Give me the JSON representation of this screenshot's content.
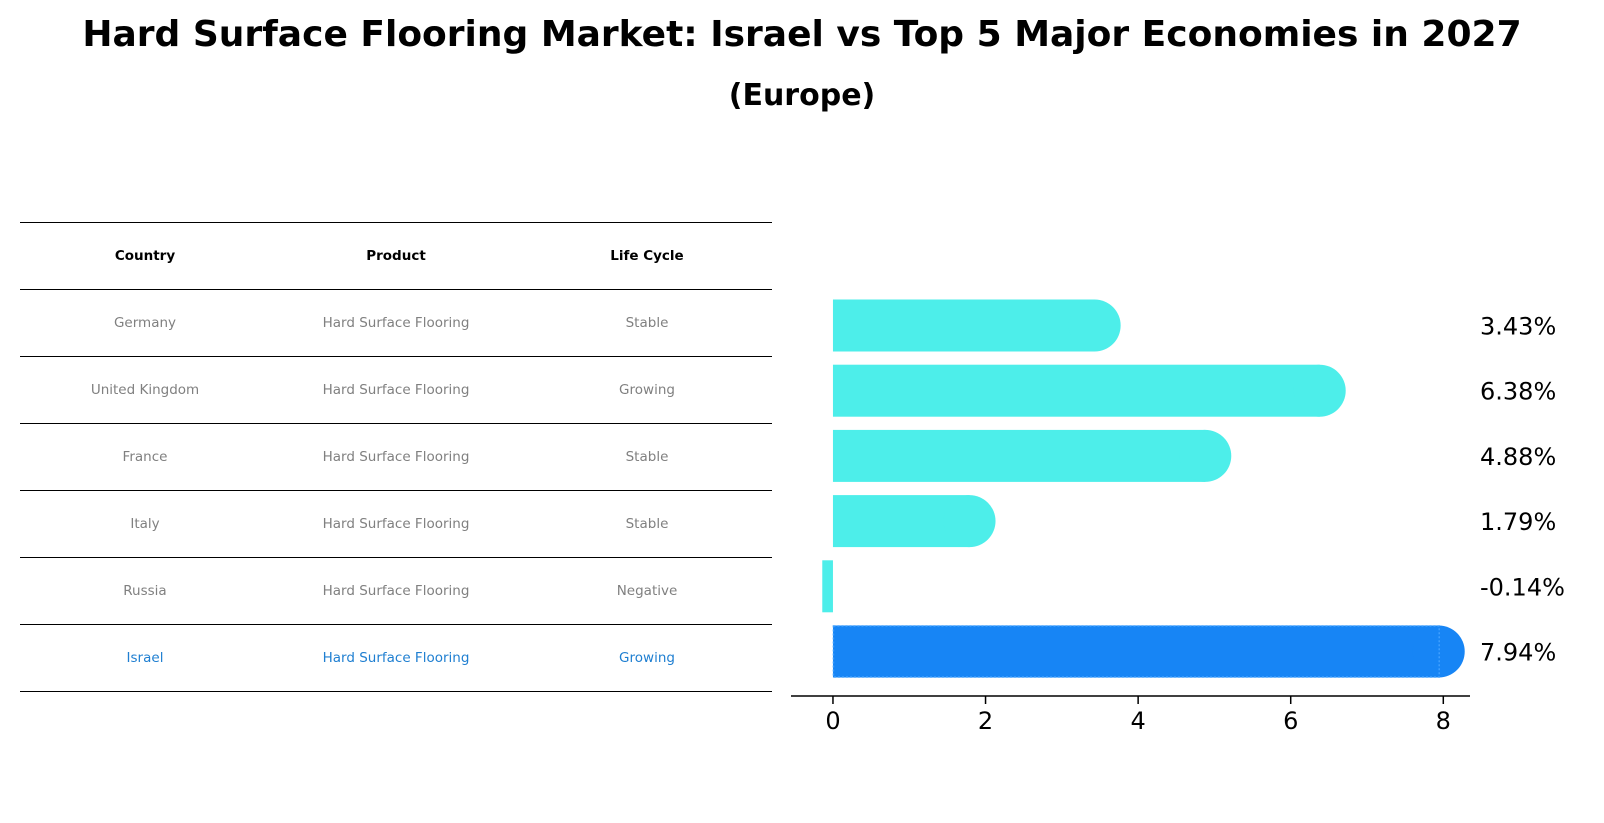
{
  "title": "Hard Surface Flooring Market: Israel vs Top 5 Major Economies in 2027",
  "subtitle": "(Europe)",
  "table": {
    "headers": [
      "Country",
      "Product",
      "Life Cycle"
    ],
    "rows": [
      [
        "Germany",
        "Hard Surface Flooring",
        "Stable"
      ],
      [
        "United Kingdom",
        "Hard Surface Flooring",
        "Growing"
      ],
      [
        "France",
        "Hard Surface Flooring",
        "Stable"
      ],
      [
        "Italy",
        "Hard Surface Flooring",
        "Stable"
      ],
      [
        "Russia",
        "Hard Surface Flooring",
        "Negative"
      ],
      [
        "Israel",
        "Hard Surface Flooring",
        "Growing"
      ]
    ],
    "highlight_row": 5
  },
  "colors": {
    "bar": "#4deeea",
    "highlight": "#1785f5",
    "highlight_text": "#1f7fd1",
    "muted_text": "#808080"
  },
  "chart_data": {
    "type": "bar",
    "orientation": "horizontal",
    "categories": [
      "Germany",
      "United Kingdom",
      "France",
      "Italy",
      "Russia",
      "Israel"
    ],
    "values": [
      3.43,
      6.38,
      4.88,
      1.79,
      -0.14,
      7.94
    ],
    "labels": [
      "3.43%",
      "6.38%",
      "4.88%",
      "1.79%",
      "-0.14%",
      "7.94%"
    ],
    "highlight_index": 5,
    "xlim": [
      -0.55,
      8.35
    ],
    "xticks": [
      0,
      2,
      4,
      6,
      8
    ],
    "grid": false
  }
}
